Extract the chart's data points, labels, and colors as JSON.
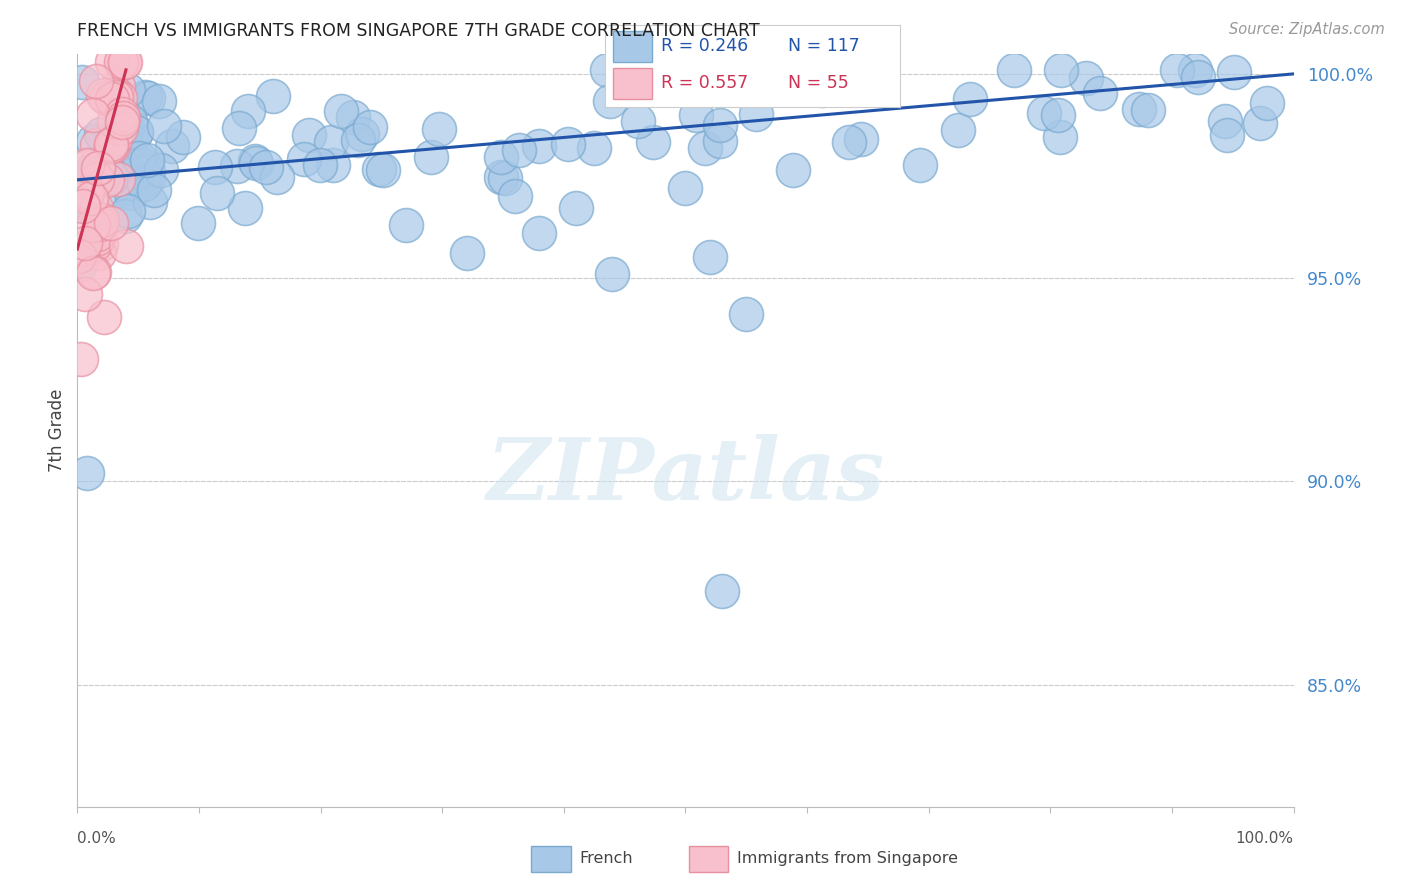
{
  "title": "FRENCH VS IMMIGRANTS FROM SINGAPORE 7TH GRADE CORRELATION CHART",
  "source": "Source: ZipAtlas.com",
  "ylabel": "7th Grade",
  "ytick_values": [
    1.0,
    0.95,
    0.9,
    0.85
  ],
  "blue_color": "#a8c8e8",
  "blue_edge_color": "#7aaad0",
  "pink_color": "#f8c0cc",
  "pink_edge_color": "#e890a0",
  "trendline_color": "#2255aa",
  "pink_trendline_color": "#cc3355",
  "legend_R_blue": "R = 0.246",
  "legend_N_blue": "N = 117",
  "legend_R_pink": "R = 0.557",
  "legend_N_pink": "N = 55",
  "watermark": "ZIPatlas",
  "background_color": "#ffffff",
  "grid_color": "#cccccc",
  "ymin": 0.82,
  "ymax": 1.005
}
